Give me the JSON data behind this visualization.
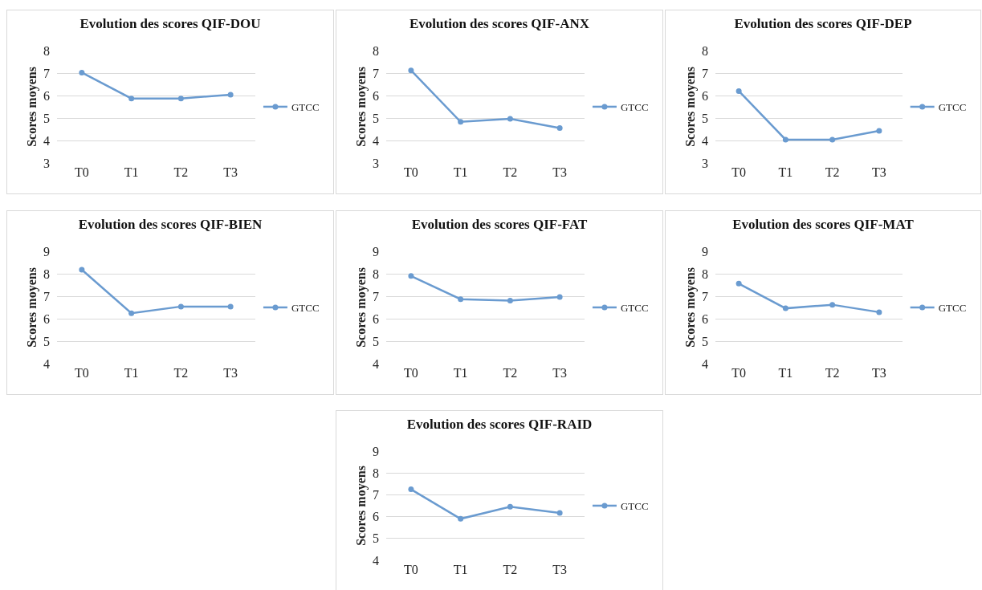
{
  "chart_data": [
    {
      "type": "line",
      "title": "Evolution des scores QIF-DOU",
      "ylabel": "Scores moyens",
      "categories": [
        "T0",
        "T1",
        "T2",
        "T3"
      ],
      "series": [
        {
          "name": "GTCC",
          "color": "#6a9bd0",
          "values": [
            7.02,
            5.87,
            5.87,
            6.04
          ]
        }
      ],
      "ylim": [
        3,
        8
      ],
      "yticks": [
        3,
        4,
        5,
        6,
        7,
        8
      ],
      "grid": "y",
      "legend": "right",
      "marker": "circle"
    },
    {
      "type": "line",
      "title": "Evolution des scores QIF-ANX",
      "ylabel": "Scores moyens",
      "categories": [
        "T0",
        "T1",
        "T2",
        "T3"
      ],
      "series": [
        {
          "name": "GTCC",
          "color": "#6a9bd0",
          "values": [
            7.12,
            4.83,
            4.96,
            4.55
          ]
        }
      ],
      "ylim": [
        3,
        8
      ],
      "yticks": [
        3,
        4,
        5,
        6,
        7,
        8
      ],
      "grid": "y",
      "legend": "right",
      "marker": "circle"
    },
    {
      "type": "line",
      "title": "Evolution des scores QIF-DEP",
      "ylabel": "Scores moyens",
      "categories": [
        "T0",
        "T1",
        "T2",
        "T3"
      ],
      "series": [
        {
          "name": "GTCC",
          "color": "#6a9bd0",
          "values": [
            6.2,
            4.04,
            4.04,
            4.43
          ]
        }
      ],
      "ylim": [
        3,
        8
      ],
      "yticks": [
        3,
        4,
        5,
        6,
        7,
        8
      ],
      "grid": "y",
      "legend": "right",
      "marker": "circle"
    },
    {
      "type": "line",
      "title": "Evolution des scores QIF-BIEN",
      "ylabel": "Scores moyens",
      "categories": [
        "T0",
        "T1",
        "T2",
        "T3"
      ],
      "series": [
        {
          "name": "GTCC",
          "color": "#6a9bd0",
          "values": [
            8.18,
            6.24,
            6.54,
            6.54
          ]
        }
      ],
      "ylim": [
        4,
        9
      ],
      "yticks": [
        4,
        5,
        6,
        7,
        8,
        9
      ],
      "grid": "y",
      "legend": "right",
      "marker": "circle"
    },
    {
      "type": "line",
      "title": "Evolution des scores QIF-FAT",
      "ylabel": "Scores moyens",
      "categories": [
        "T0",
        "T1",
        "T2",
        "T3"
      ],
      "series": [
        {
          "name": "GTCC",
          "color": "#6a9bd0",
          "values": [
            7.9,
            6.87,
            6.8,
            6.96
          ]
        }
      ],
      "ylim": [
        4,
        9
      ],
      "yticks": [
        4,
        5,
        6,
        7,
        8,
        9
      ],
      "grid": "y",
      "legend": "right",
      "marker": "circle"
    },
    {
      "type": "line",
      "title": "Evolution des scores QIF-MAT",
      "ylabel": "Scores moyens",
      "categories": [
        "T0",
        "T1",
        "T2",
        "T3"
      ],
      "series": [
        {
          "name": "GTCC",
          "color": "#6a9bd0",
          "values": [
            7.56,
            6.46,
            6.62,
            6.29
          ]
        }
      ],
      "ylim": [
        4,
        9
      ],
      "yticks": [
        4,
        5,
        6,
        7,
        8,
        9
      ],
      "grid": "y",
      "legend": "right",
      "marker": "circle"
    },
    {
      "type": "line",
      "title": "Evolution des scores QIF-RAID",
      "ylabel": "Scores moyens",
      "categories": [
        "T0",
        "T1",
        "T2",
        "T3"
      ],
      "series": [
        {
          "name": "GTCC",
          "color": "#6a9bd0",
          "values": [
            7.25,
            5.9,
            6.45,
            6.17
          ]
        }
      ],
      "ylim": [
        4,
        9
      ],
      "yticks": [
        4,
        5,
        6,
        7,
        8,
        9
      ],
      "grid": "y",
      "legend": "right",
      "marker": "circle"
    }
  ]
}
